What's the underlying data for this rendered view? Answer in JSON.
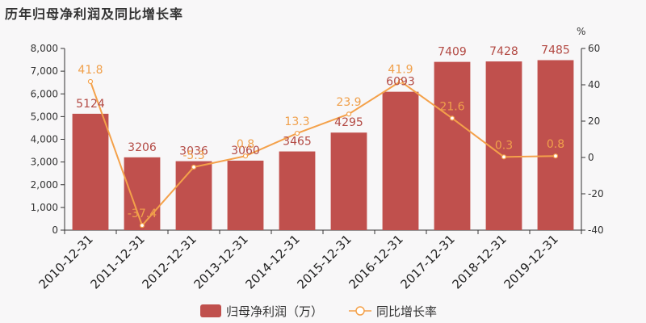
{
  "title": "历年归母净利润及同比增长率",
  "colors": {
    "bar": "#c0504d",
    "line": "#f4a14a"
  },
  "chart_data": {
    "type": "bar+line",
    "categories": [
      "2010-12-31",
      "2011-12-31",
      "2012-12-31",
      "2013-12-31",
      "2014-12-31",
      "2015-12-31",
      "2016-12-31",
      "2017-12-31",
      "2018-12-31",
      "2019-12-31"
    ],
    "series": [
      {
        "name": "归母净利润（万）",
        "type": "bar",
        "axis": "left",
        "values": [
          5124,
          3206,
          3036,
          3060,
          3465,
          4295,
          6093,
          7409,
          7428,
          7485
        ]
      },
      {
        "name": "同比增长率",
        "type": "line",
        "axis": "right",
        "values": [
          41.8,
          -37.4,
          -5.3,
          0.8,
          13.3,
          23.9,
          41.9,
          21.6,
          0.3,
          0.8
        ]
      }
    ],
    "y_left": {
      "min": 0,
      "max": 8000,
      "ticks": [
        0,
        1000,
        2000,
        3000,
        4000,
        5000,
        6000,
        7000,
        8000
      ],
      "tick_labels": [
        "0",
        "1,000",
        "2,000",
        "3,000",
        "4,000",
        "5,000",
        "6,000",
        "7,000",
        "8,000"
      ]
    },
    "y_right": {
      "min": -40,
      "max": 60,
      "ticks": [
        -40,
        -20,
        0,
        20,
        40,
        60
      ],
      "unit": "%"
    },
    "legend_position": "bottom-center",
    "grid": false
  }
}
